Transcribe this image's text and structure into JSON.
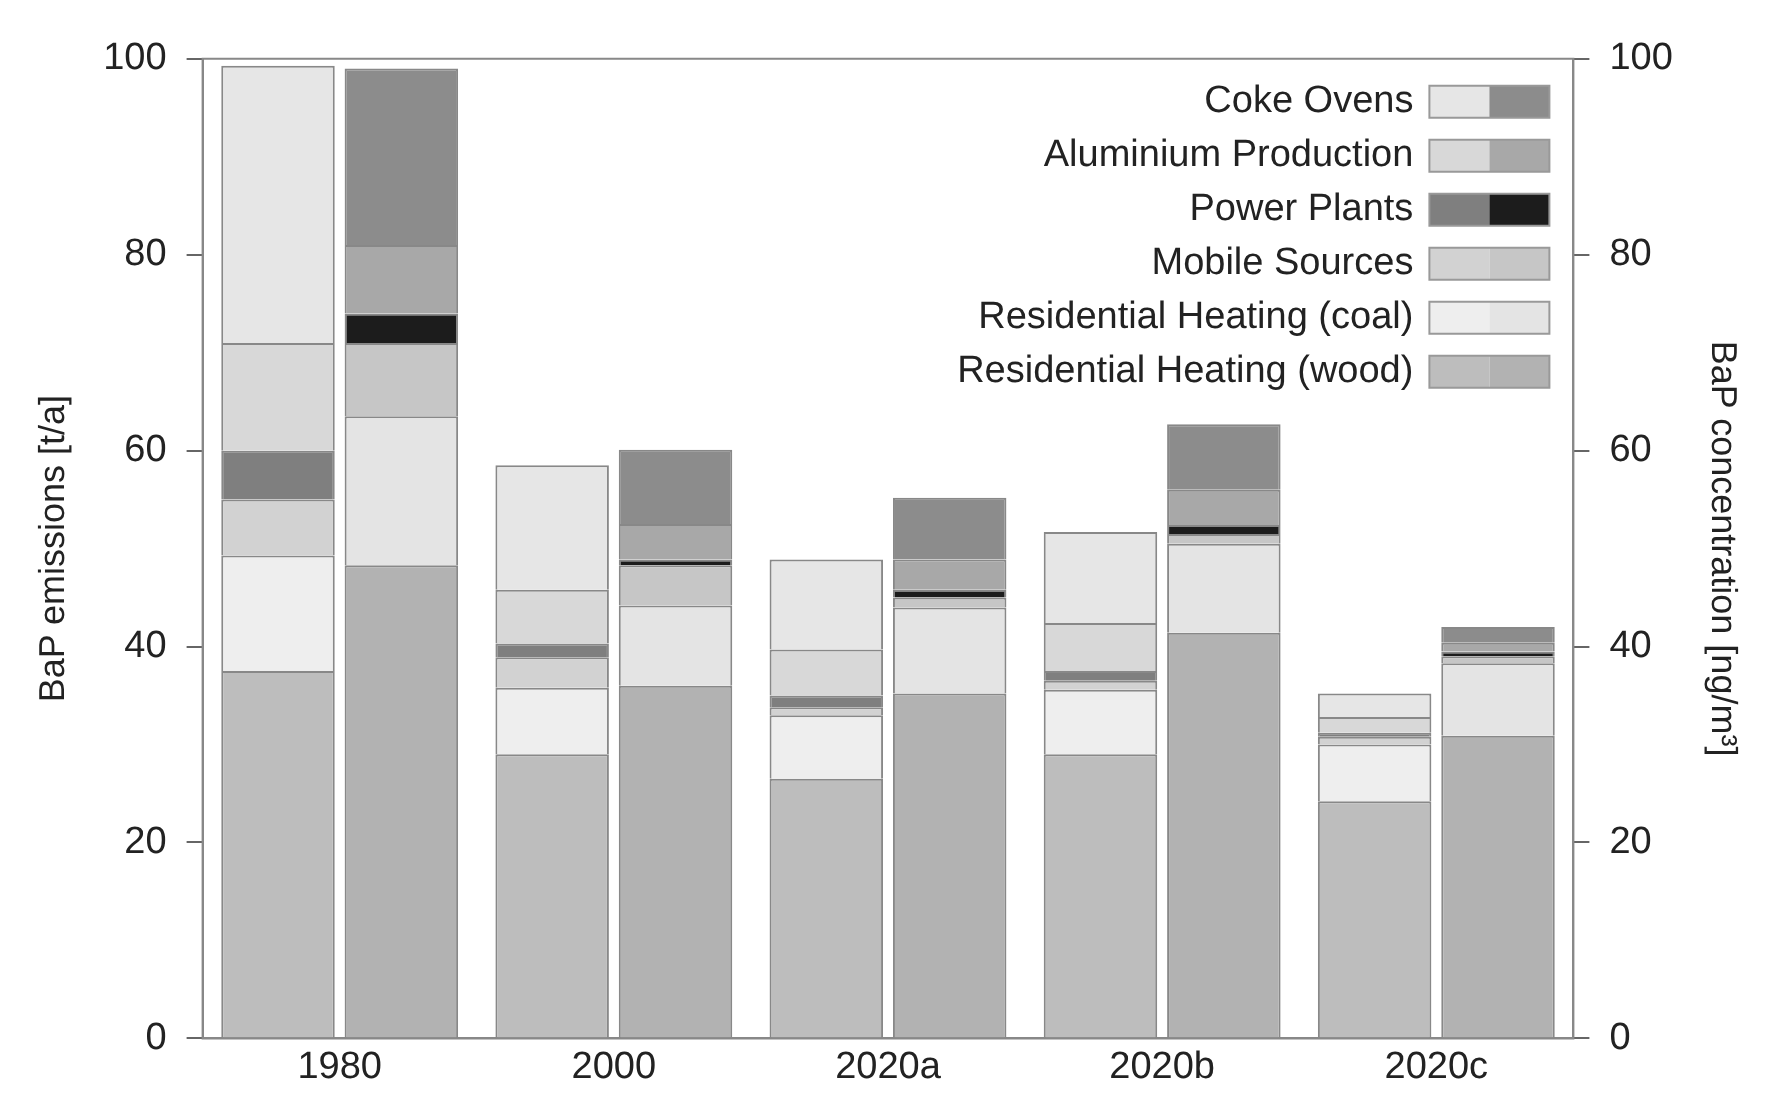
{
  "chart_data": {
    "type": "bar",
    "stacked": true,
    "ylabel": "BaP emissions [t/a]",
    "y2label": "BaP concentration [ng/m³]",
    "categories": [
      "1980",
      "2000",
      "2020a",
      "2020b",
      "2020c"
    ],
    "series": [
      {
        "name": "Residential Heating (wood)",
        "color": "#bdbdbd",
        "values": [
          37.5,
          29,
          26.5,
          29,
          24.2
        ]
      },
      {
        "name": "Residential Heating (coal)",
        "color": "#eeeeee",
        "values": [
          11.8,
          6.8,
          6.5,
          6.6,
          5.8
        ]
      },
      {
        "name": "Mobile Sources",
        "color": "#d2d2d2",
        "values": [
          5.7,
          3.1,
          0.8,
          0.9,
          0.8
        ]
      },
      {
        "name": "Power Plants",
        "color": "#7f7f7f",
        "values": [
          5,
          1.4,
          1.2,
          1,
          0.4
        ]
      },
      {
        "name": "Aluminium Production",
        "color": "#d8d8d8",
        "values": [
          11,
          5.5,
          4.7,
          4.9,
          1.6
        ]
      },
      {
        "name": "Coke Ovens",
        "color": "#e6e6e6",
        "values": [
          28.3,
          12.7,
          9.2,
          9.3,
          2.4
        ]
      },
      {
        "color": "#b2b2b2",
        "axis": "y2",
        "values": [
          48.3,
          36,
          35.2,
          41.4,
          30.9
        ]
      },
      {
        "color": "#e4e4e4",
        "axis": "y2",
        "values": [
          15.2,
          8.2,
          8.8,
          9.1,
          7.4
        ]
      },
      {
        "color": "#c6c6c6",
        "axis": "y2",
        "values": [
          7.5,
          4.1,
          1,
          1,
          0.7
        ]
      },
      {
        "color": "#1c1c1c",
        "axis": "y2",
        "values": [
          3,
          0.6,
          0.8,
          0.9,
          0.5
        ]
      },
      {
        "color": "#a8a8a8",
        "axis": "y2",
        "values": [
          7,
          3.6,
          3.1,
          3.6,
          0.9
        ]
      },
      {
        "color": "#8c8c8c",
        "axis": "y2",
        "values": [
          18,
          7.6,
          6.3,
          6.7,
          1.6
        ]
      }
    ],
    "ylim": [
      0,
      100
    ],
    "yticks": [
      0,
      20,
      40,
      60,
      80,
      100
    ],
    "y2lim": [
      0,
      100
    ],
    "y2ticks": [
      0,
      20,
      40,
      60,
      80,
      100
    ],
    "grid": false,
    "legend": "top right"
  }
}
